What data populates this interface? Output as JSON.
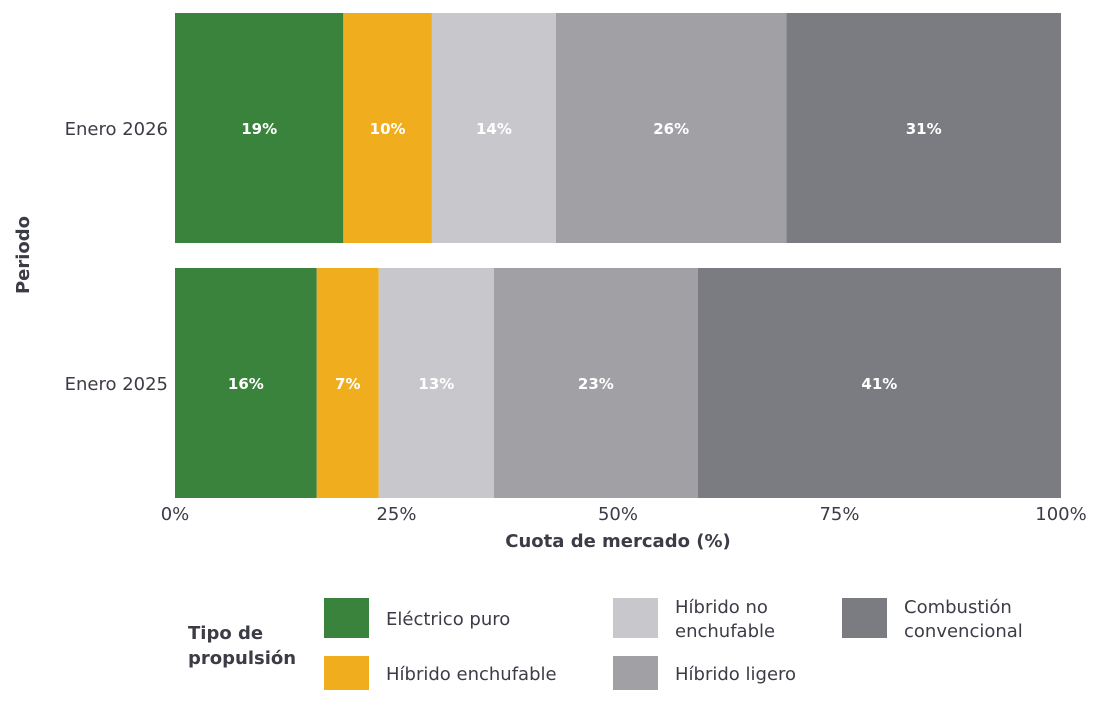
{
  "chart_data": {
    "type": "bar",
    "orientation": "horizontal",
    "stacked": true,
    "categories": [
      "Enero 2026",
      "Enero 2025"
    ],
    "series": [
      {
        "name": "Eléctrico puro",
        "color": "#3a833c",
        "values": [
          19,
          16
        ],
        "labels": [
          "19%",
          "16%"
        ]
      },
      {
        "name": "Híbrido enchufable",
        "color": "#f0ae1f",
        "values": [
          10,
          7
        ],
        "labels": [
          "10%",
          "7%"
        ]
      },
      {
        "name": "Híbrido no enchufable",
        "color": "#c8c8cc",
        "values": [
          14,
          13
        ],
        "labels": [
          "14%",
          "13%"
        ]
      },
      {
        "name": "Híbrido ligero",
        "color": "#a0a0a5",
        "values": [
          26,
          23
        ],
        "labels": [
          "26%",
          "23%"
        ]
      },
      {
        "name": "Combustión convencional",
        "color": "#7b7c81",
        "values": [
          31,
          41
        ],
        "labels": [
          "31%",
          "41%"
        ]
      }
    ],
    "xlabel": "Cuota de mercado (%)",
    "ylabel": "Periodo",
    "xlim": [
      0,
      100
    ],
    "xticks": [
      0,
      25,
      50,
      75,
      100
    ],
    "xtick_labels": [
      "0%",
      "25%",
      "50%",
      "75%",
      "100%"
    ],
    "grid": false,
    "legend": {
      "title": "Tipo de propulsión",
      "placement": "bottom",
      "entries": [
        "Eléctrico puro",
        "Híbrido enchufable",
        "Híbrido no enchufable",
        "Híbrido ligero",
        "Combustión convencional"
      ]
    }
  }
}
